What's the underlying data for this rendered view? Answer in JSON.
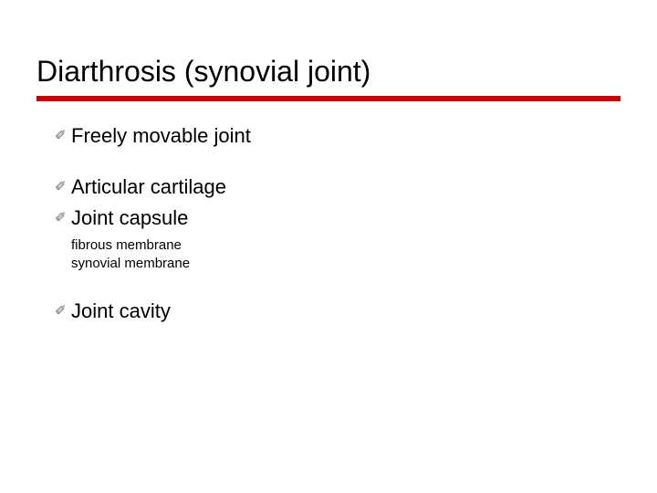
{
  "slide": {
    "title": "Diarthrosis (synovial joint)",
    "title_color": "#000000",
    "title_fontsize": 32,
    "underline_color": "#cc0000",
    "underline_height": 6,
    "background_color": "#ffffff",
    "bullets": [
      {
        "icon": "✐",
        "text": "Freely movable joint",
        "spaced": false
      },
      {
        "icon": "✐",
        "text": "Articular cartilage",
        "spaced": true
      },
      {
        "icon": "✐",
        "text": "Joint capsule",
        "spaced": false
      }
    ],
    "sub_items": [
      "fibrous membrane",
      "synovial membrane"
    ],
    "final_bullet": {
      "icon": "✐",
      "text": "Joint cavity"
    },
    "bullet_fontsize": 22,
    "bullet_color": "#000000",
    "sub_fontsize": 15,
    "icon_color": "#666666"
  }
}
